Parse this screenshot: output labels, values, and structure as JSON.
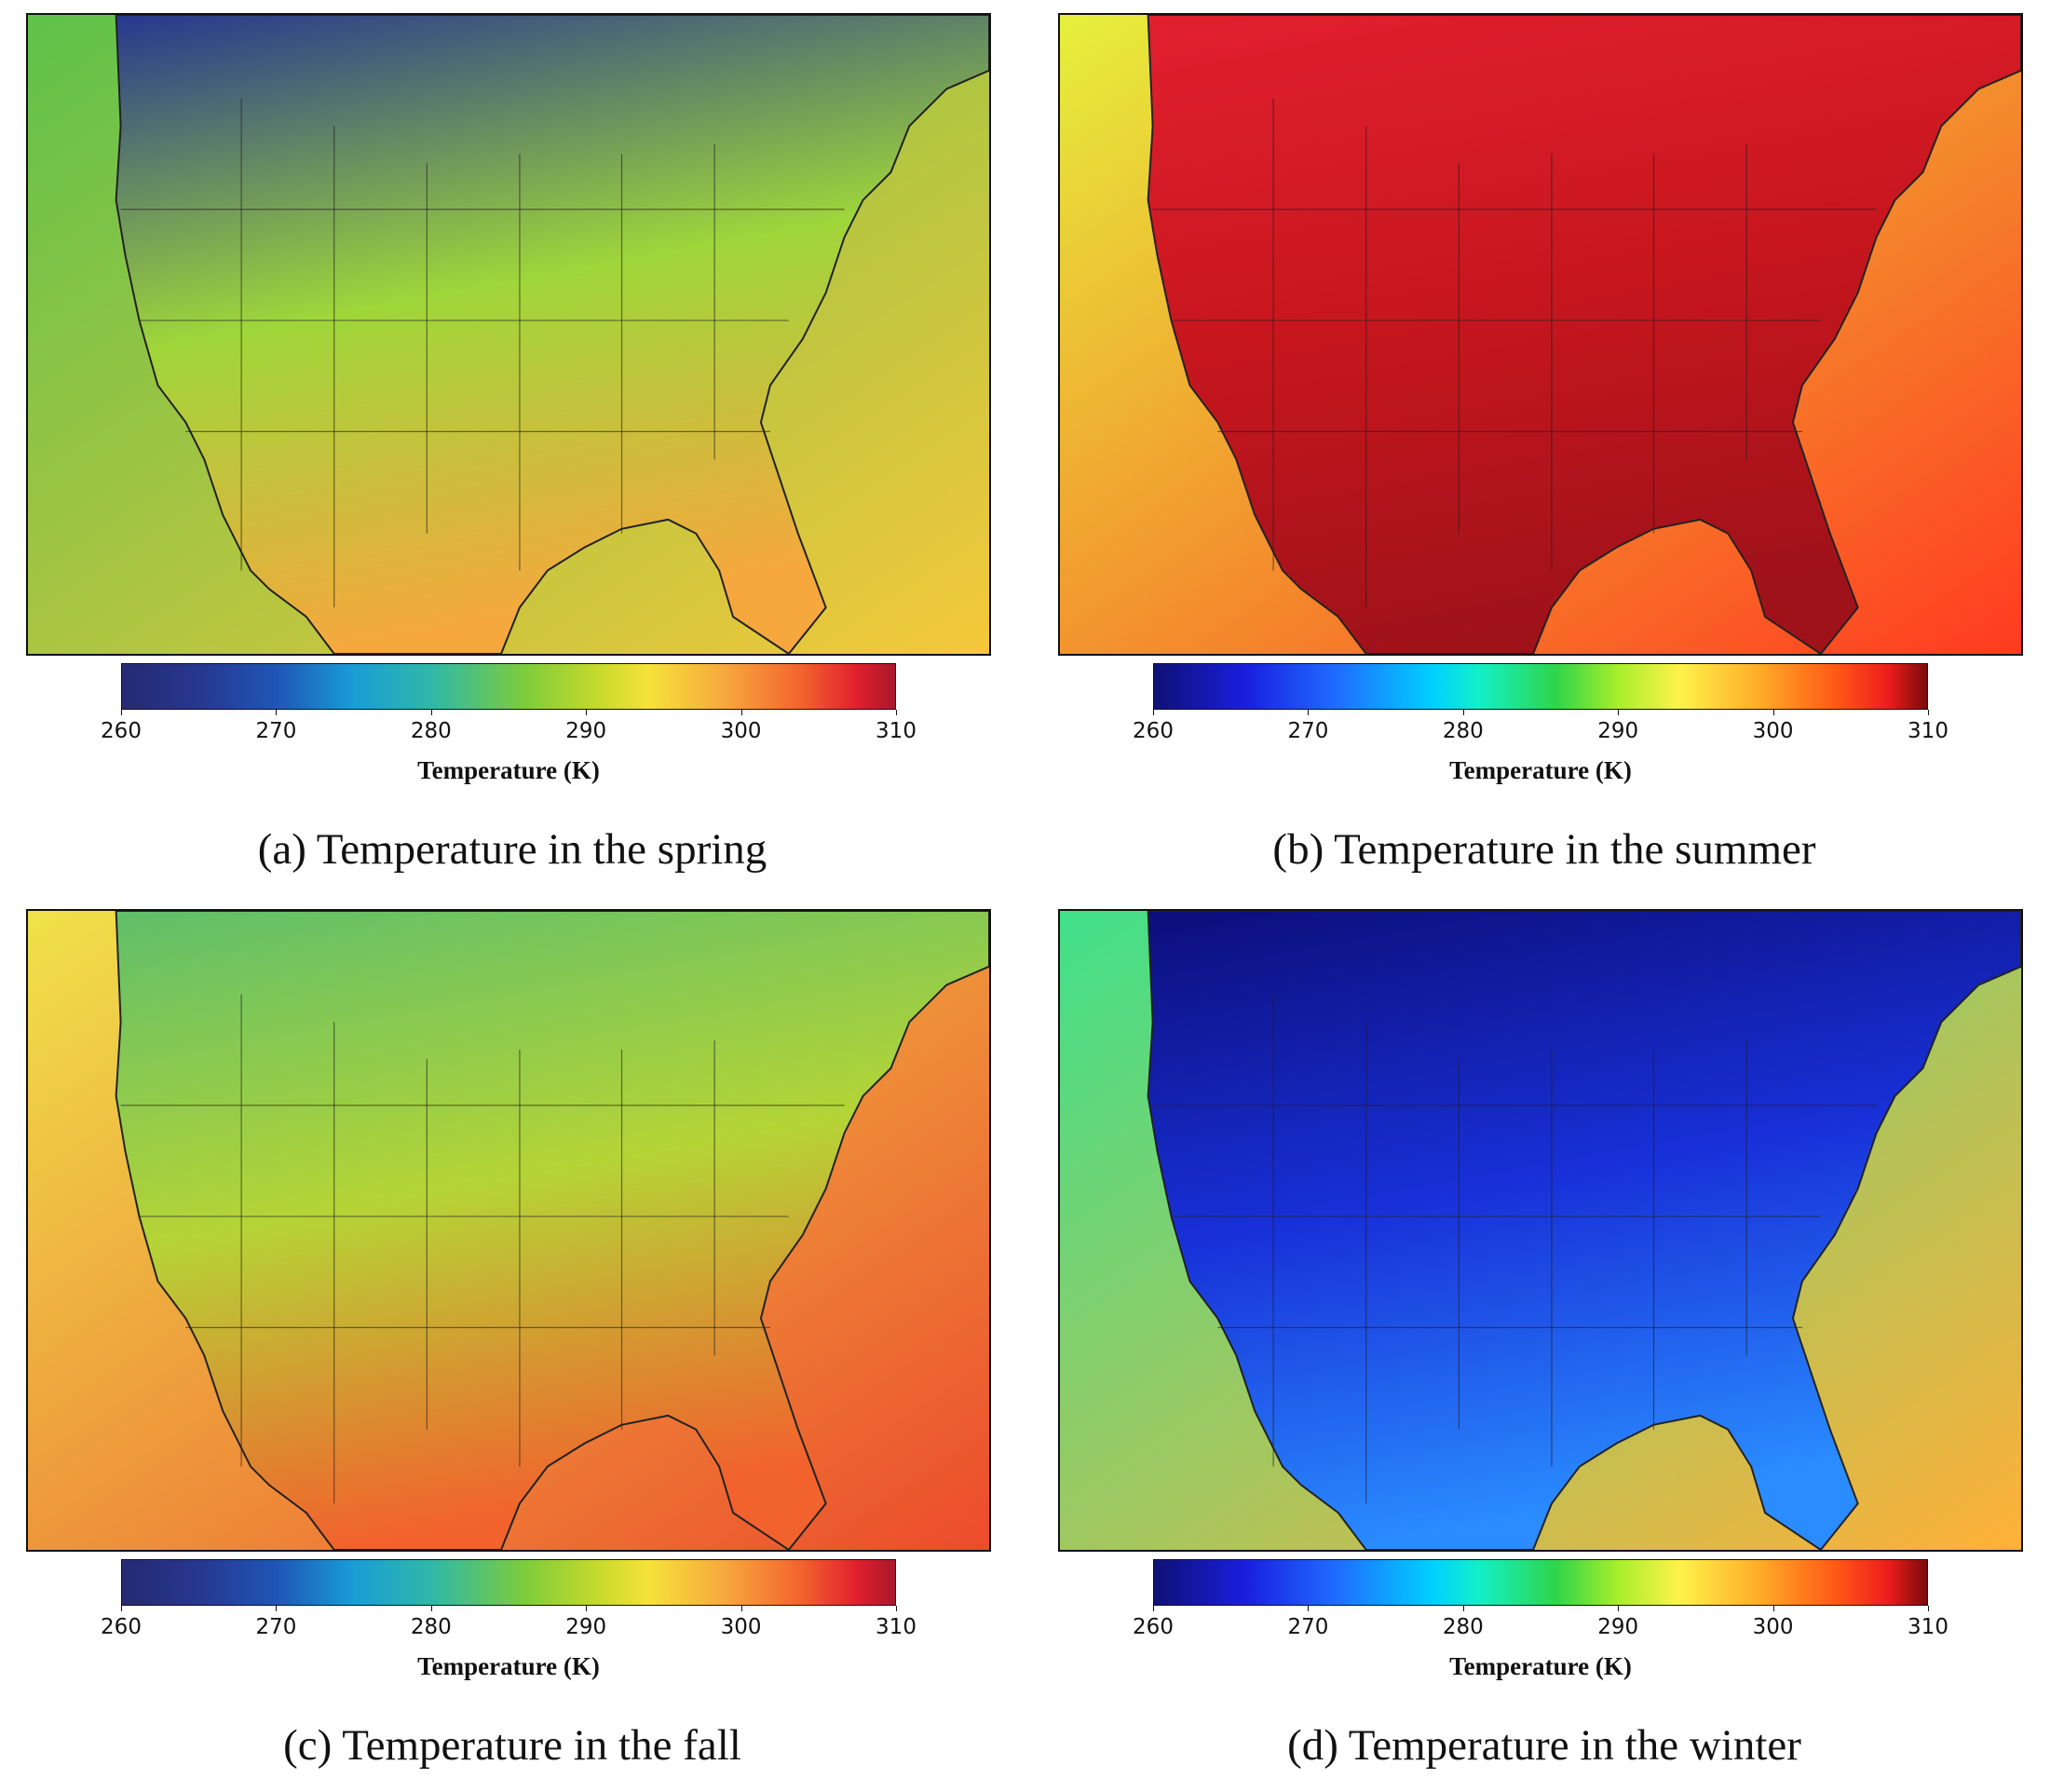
{
  "colorbar": {
    "title": "Temperature (K)",
    "min": 260,
    "max": 310,
    "ticks": [
      "260",
      "270",
      "280",
      "290",
      "300",
      "310"
    ]
  },
  "panels": [
    {
      "id": "a",
      "caption": "(a) Temperature in the spring",
      "colormap": "parula",
      "colors": {
        "north": "#27378f",
        "mid": "#9fd63a",
        "south": "#f6a83e",
        "ocean_w": "#5ec24a",
        "ocean_e": "#f6c83a"
      }
    },
    {
      "id": "b",
      "caption": "(b) Temperature in the summer",
      "colormap": "jet",
      "colors": {
        "north": "#e1202e",
        "mid": "#c8161e",
        "south": "#a0121a",
        "ocean_w": "#e6f03c",
        "ocean_e": "#ff3a20"
      }
    },
    {
      "id": "c",
      "caption": "(c) Temperature in the fall",
      "colormap": "parula",
      "colors": {
        "north": "#5fbf6a",
        "mid": "#b5d436",
        "south": "#f2622d",
        "ocean_w": "#f0e24a",
        "ocean_e": "#ec4b2c"
      }
    },
    {
      "id": "d",
      "caption": "(d) Temperature in the winter",
      "colormap": "jet",
      "colors": {
        "north": "#0c0e7a",
        "mid": "#1830d8",
        "south": "#2a8cff",
        "ocean_w": "#40e08a",
        "ocean_e": "#ffb038"
      }
    }
  ]
}
